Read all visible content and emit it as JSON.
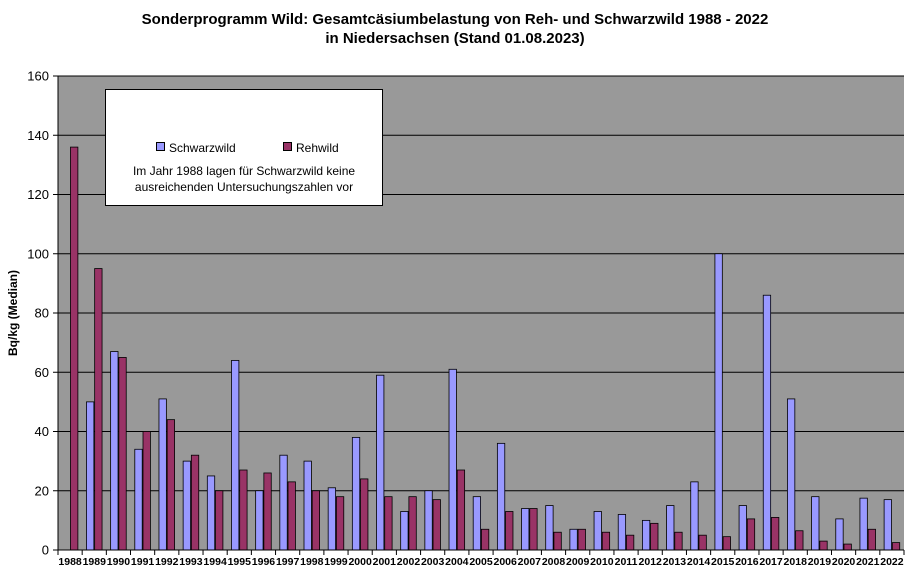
{
  "chart_data": {
    "type": "bar",
    "title_line1": "Sonderprogramm Wild: Gesamtcäsiumbelastung von Reh- und Schwarzwild 1988 - 2022",
    "title_line2": "in Niedersachsen (Stand  01.08.2023)",
    "xlabel": "",
    "ylabel": "Bq/kg (Median)",
    "ylim": [
      0,
      160
    ],
    "yticks": [
      0,
      20,
      40,
      60,
      80,
      100,
      120,
      140,
      160
    ],
    "grid": true,
    "legend_position": "top-left",
    "categories": [
      "1988",
      "1989",
      "1990",
      "1991",
      "1992",
      "1993",
      "1994",
      "1995",
      "1996",
      "1997",
      "1998",
      "1999",
      "2000",
      "2001",
      "2002",
      "2003",
      "2004",
      "2005",
      "2006",
      "2007",
      "2008",
      "2009",
      "2010",
      "2011",
      "2012",
      "2013",
      "2014",
      "2015",
      "2016",
      "2017",
      "2018",
      "2019",
      "2020",
      "2021",
      "2022"
    ],
    "series": [
      {
        "name": "Schwarzwild",
        "color": "#9999ff",
        "values": [
          null,
          50,
          67,
          34,
          51,
          30,
          25,
          64,
          20,
          32,
          30,
          21,
          38,
          59,
          13,
          20,
          61,
          18,
          36,
          14,
          15,
          7,
          13,
          12,
          10,
          15,
          23,
          100,
          15,
          86,
          51,
          18,
          10.5,
          17.5,
          17
        ]
      },
      {
        "name": "Rehwild",
        "color": "#993366",
        "values": [
          136,
          95,
          65,
          40,
          44,
          32,
          20,
          27,
          26,
          23,
          20,
          18,
          24,
          18,
          18,
          17,
          27,
          7,
          13,
          14,
          6,
          7,
          6,
          5,
          9,
          6,
          5,
          4.5,
          10.5,
          11,
          6.5,
          3,
          2,
          7,
          2.5
        ]
      }
    ],
    "annotation": "Im Jahr 1988 lagen für Schwarzwild keine ausreichenden Untersuchungszahlen  vor",
    "plot_background": "#999999",
    "gridline_color": "#000000"
  }
}
